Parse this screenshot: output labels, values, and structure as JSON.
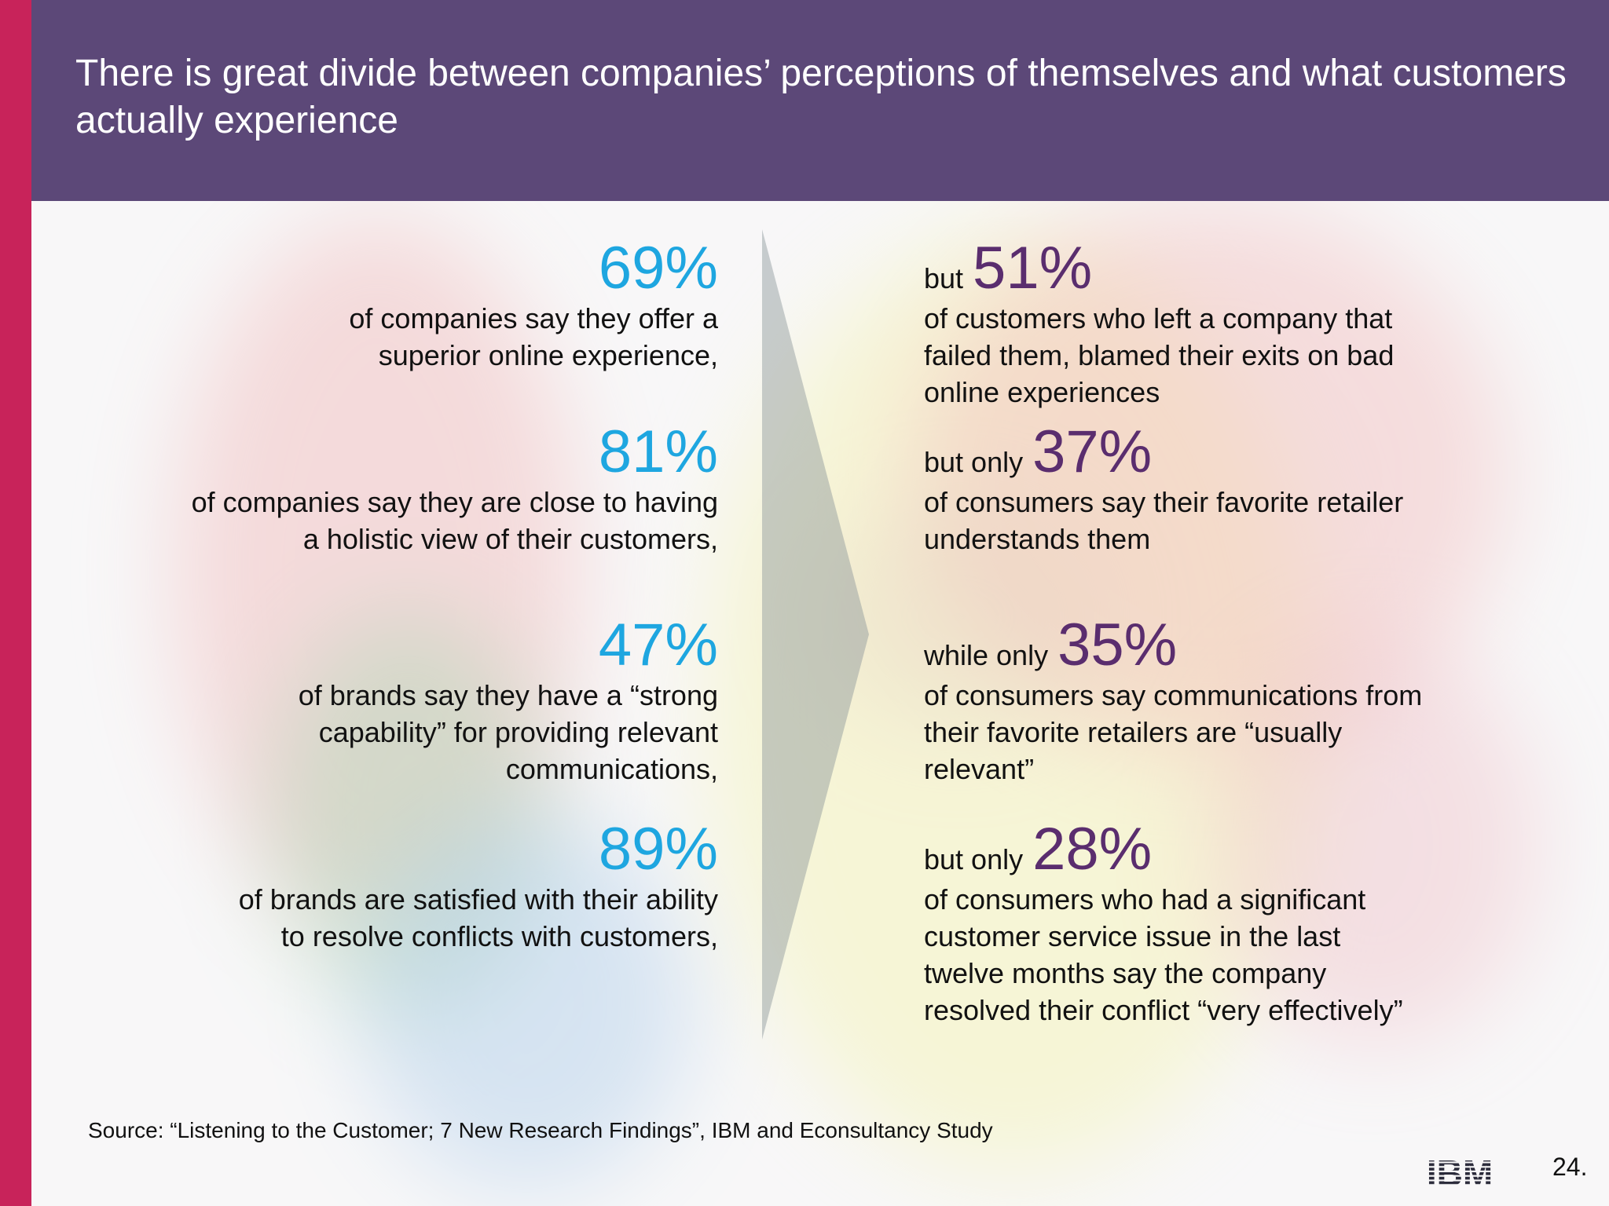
{
  "title": "There is great divide between companies’ perceptions of themselves and what customers actually experience",
  "colors": {
    "header_bg": "#5c4878",
    "accent_bar": "#c8235a",
    "company_pct": "#1ea6e0",
    "customer_pct": "#5a2d6e"
  },
  "company_stats": [
    {
      "pct": "69%",
      "text": "of companies say they offer a superior online experience,"
    },
    {
      "pct": "81%",
      "text": "of companies say they are close to having a holistic view of their customers,"
    },
    {
      "pct": "47%",
      "text": "of brands say they have a “strong capability” for providing relevant communications,"
    },
    {
      "pct": "89%",
      "text": "of brands are satisfied with their ability to resolve conflicts with customers,"
    }
  ],
  "customer_stats": [
    {
      "lead": "but",
      "pct": "51%",
      "text": "of customers who left a company that failed them, blamed their exits on bad online experiences"
    },
    {
      "lead": "but only",
      "pct": "37%",
      "text": "of consumers say their favorite retailer understands them"
    },
    {
      "lead": "while only",
      "pct": "35%",
      "text": "of consumers say communications from their favorite retailers are “usually relevant”"
    },
    {
      "lead": "but only",
      "pct": "28%",
      "text": "of consumers who had a significant customer service issue in the last twelve months say the company resolved their conflict “very effectively”"
    }
  ],
  "source": "Source: “Listening to the Customer; 7 New Research Findings”, IBM and Econsultancy Study",
  "logo": "IBM",
  "page_number": "24."
}
